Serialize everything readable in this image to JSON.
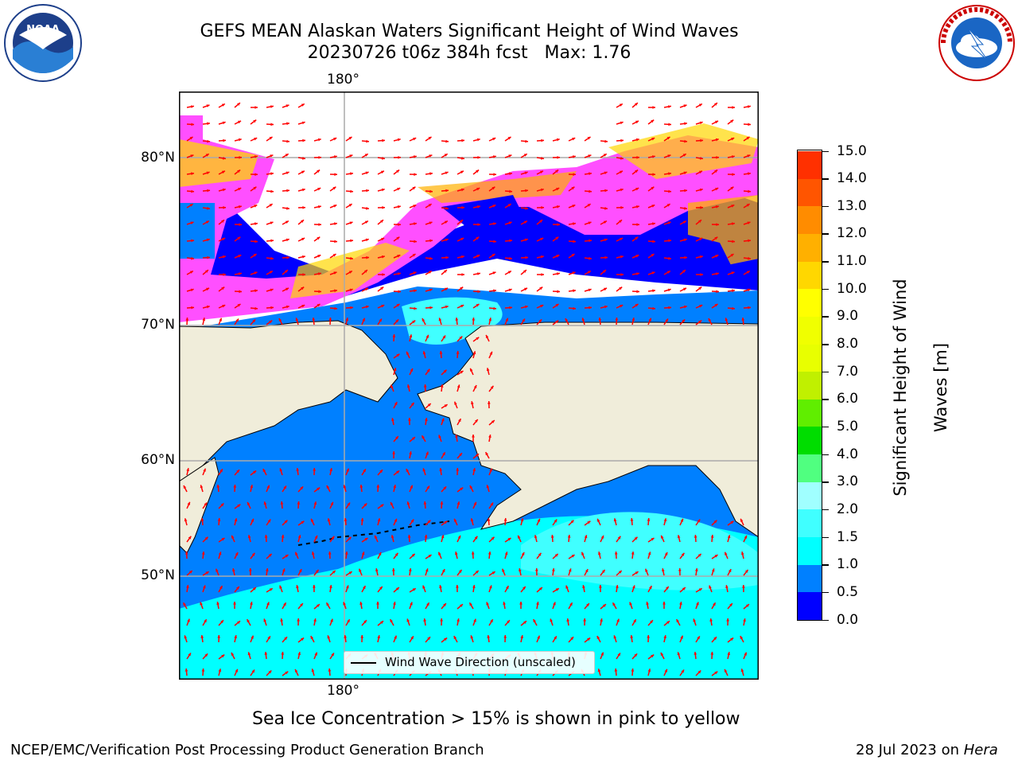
{
  "title": {
    "line1": "GEFS MEAN Alaskan Waters Significant Height of Wind Waves",
    "line2": "20230726 t06z 384h fcst   Max: 1.76"
  },
  "logos": {
    "left": {
      "name": "noaa-logo",
      "text": "NOAA"
    },
    "right": {
      "name": "nws-logo"
    }
  },
  "map": {
    "longitude_labels": {
      "top": "180°",
      "bottom": "180°"
    },
    "latitude_labels": [
      "80°N",
      "70°N",
      "60°N",
      "50°N"
    ],
    "legend": "Wind Wave Direction (unscaled)",
    "colors": {
      "land": "#f0edda",
      "ocean_low": "#0080ff",
      "ocean_mid": "#00ffff",
      "arrow": "#ff0000",
      "ice_pink": "#ff4fff",
      "ice_yellow": "#ffd700"
    }
  },
  "colorbar": {
    "title_line1": "Significant Height of Wind",
    "title_line2": "Waves [m]",
    "ticks": [
      "15.0",
      "14.0",
      "13.0",
      "12.0",
      "11.0",
      "10.0",
      "9.0",
      "8.0",
      "7.0",
      "6.0",
      "5.0",
      "4.0",
      "3.0",
      "2.0",
      "1.5",
      "1.0",
      "0.5",
      "0.0"
    ],
    "colors": [
      "#0000ff",
      "#0080ff",
      "#00ffff",
      "#40ffff",
      "#a0ffff",
      "#50ff80",
      "#00dd00",
      "#60ee00",
      "#c0f000",
      "#e8ff00",
      "#f0ff00",
      "#ffff00",
      "#ffd700",
      "#ffb000",
      "#ff8c00",
      "#ff5500",
      "#ff3000",
      "#ff0000"
    ]
  },
  "caption": "Sea Ice Concentration > 15% is shown in pink to yellow",
  "footer": {
    "left": "NCEP/EMC/Verification Post Processing Product Generation Branch",
    "right_date": "28 Jul 2023 on ",
    "right_host": "Hera"
  }
}
